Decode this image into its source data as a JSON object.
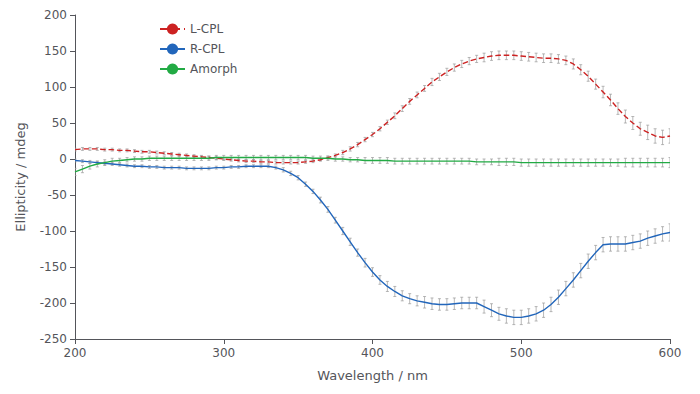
{
  "chart_data": {
    "type": "line",
    "xlabel": "Wavelength / nm",
    "ylabel": "Ellipticity / mdeg",
    "xlim": [
      200,
      600
    ],
    "ylim": [
      -250,
      200
    ],
    "xticks": [
      200,
      300,
      400,
      500,
      600
    ],
    "yticks": [
      -250,
      -200,
      -150,
      -100,
      -50,
      0,
      50,
      100,
      150,
      200
    ],
    "grid": false,
    "legend": "upper left",
    "x": [
      200,
      205,
      210,
      215,
      220,
      225,
      230,
      235,
      240,
      245,
      250,
      255,
      260,
      265,
      270,
      275,
      280,
      285,
      290,
      295,
      300,
      305,
      310,
      315,
      320,
      325,
      330,
      335,
      340,
      345,
      350,
      355,
      360,
      365,
      370,
      375,
      380,
      385,
      390,
      395,
      400,
      405,
      410,
      415,
      420,
      425,
      430,
      435,
      440,
      445,
      450,
      455,
      460,
      465,
      470,
      475,
      480,
      485,
      490,
      495,
      500,
      505,
      510,
      515,
      520,
      525,
      530,
      535,
      540,
      545,
      550,
      555,
      560,
      565,
      570,
      575,
      580,
      585,
      590,
      595,
      600
    ],
    "series": [
      {
        "name": "L-CPL",
        "color": "#cc2222",
        "line_style": "dashed",
        "values": [
          13,
          14,
          14,
          14,
          13,
          13,
          12,
          12,
          11,
          10,
          10,
          9,
          8,
          7,
          6,
          5,
          4,
          3,
          2,
          1,
          0,
          -1,
          -2,
          -3,
          -3,
          -4,
          -4,
          -5,
          -5,
          -5,
          -5,
          -4,
          -3,
          -1,
          2,
          5,
          9,
          14,
          20,
          27,
          34,
          42,
          51,
          60,
          70,
          80,
          89,
          98,
          107,
          114,
          121,
          127,
          132,
          136,
          139,
          141,
          143,
          144,
          144,
          144,
          143,
          142,
          141,
          140,
          140,
          139,
          137,
          132,
          124,
          115,
          104,
          93,
          82,
          70,
          59,
          50,
          42,
          37,
          32,
          30,
          32
        ],
        "yerr": [
          2,
          2,
          2,
          2,
          2,
          2,
          2,
          2,
          2,
          2,
          2,
          2,
          2,
          2,
          2,
          2,
          2,
          2,
          2,
          2,
          2,
          2,
          2,
          2,
          2,
          2,
          2,
          2,
          2,
          2,
          2,
          2,
          2,
          2,
          2,
          2,
          3,
          3,
          3,
          3,
          3,
          3,
          3,
          4,
          4,
          4,
          4,
          4,
          5,
          5,
          5,
          5,
          5,
          5,
          5,
          6,
          6,
          6,
          6,
          6,
          6,
          6,
          6,
          6,
          6,
          6,
          6,
          7,
          7,
          7,
          7,
          8,
          8,
          8,
          9,
          9,
          9,
          10,
          10,
          10,
          10
        ]
      },
      {
        "name": "R-CPL",
        "color": "#2266bb",
        "line_style": "solid",
        "values": [
          -2,
          -3,
          -4,
          -5,
          -6,
          -7,
          -8,
          -9,
          -10,
          -10,
          -11,
          -11,
          -12,
          -12,
          -12,
          -13,
          -13,
          -13,
          -13,
          -12,
          -12,
          -11,
          -11,
          -10,
          -10,
          -10,
          -10,
          -12,
          -15,
          -20,
          -26,
          -35,
          -45,
          -57,
          -70,
          -85,
          -100,
          -115,
          -130,
          -144,
          -157,
          -168,
          -177,
          -184,
          -190,
          -194,
          -197,
          -199,
          -201,
          -202,
          -202,
          -201,
          -200,
          -200,
          -200,
          -205,
          -210,
          -215,
          -218,
          -220,
          -220,
          -218,
          -215,
          -210,
          -202,
          -192,
          -180,
          -168,
          -155,
          -142,
          -130,
          -119,
          -118,
          -118,
          -118,
          -116,
          -114,
          -110,
          -107,
          -104,
          -102
        ],
        "yerr": [
          2,
          2,
          2,
          2,
          2,
          2,
          2,
          2,
          2,
          2,
          2,
          2,
          2,
          2,
          2,
          2,
          2,
          2,
          2,
          2,
          2,
          2,
          2,
          2,
          2,
          2,
          2,
          2,
          3,
          3,
          3,
          3,
          3,
          4,
          4,
          4,
          5,
          5,
          5,
          6,
          6,
          6,
          7,
          7,
          7,
          7,
          7,
          8,
          8,
          8,
          8,
          8,
          8,
          8,
          8,
          9,
          9,
          9,
          10,
          10,
          10,
          10,
          10,
          10,
          10,
          10,
          10,
          10,
          10,
          10,
          10,
          10,
          10,
          10,
          10,
          10,
          10,
          10,
          10,
          10,
          12
        ]
      },
      {
        "name": "Amorph",
        "color": "#22aa44",
        "line_style": "solid",
        "values": [
          -18,
          -14,
          -10,
          -7,
          -5,
          -3,
          -2,
          -1,
          0,
          0,
          1,
          1,
          1,
          1,
          1,
          1,
          1,
          1,
          1,
          2,
          2,
          2,
          2,
          2,
          2,
          2,
          2,
          2,
          2,
          2,
          2,
          2,
          1,
          1,
          1,
          0,
          0,
          -1,
          -1,
          -2,
          -2,
          -2,
          -2,
          -3,
          -3,
          -3,
          -3,
          -3,
          -3,
          -3,
          -3,
          -3,
          -3,
          -3,
          -4,
          -4,
          -4,
          -4,
          -4,
          -4,
          -5,
          -5,
          -5,
          -5,
          -5,
          -5,
          -5,
          -5,
          -5,
          -5,
          -5,
          -5,
          -5,
          -5,
          -5,
          -5,
          -5,
          -5,
          -5,
          -5,
          -5
        ],
        "yerr": [
          5,
          5,
          4,
          4,
          4,
          4,
          3,
          3,
          3,
          3,
          3,
          3,
          3,
          3,
          3,
          3,
          3,
          3,
          3,
          3,
          3,
          3,
          3,
          3,
          3,
          3,
          3,
          3,
          3,
          3,
          3,
          3,
          3,
          3,
          3,
          3,
          3,
          3,
          3,
          4,
          4,
          4,
          4,
          4,
          4,
          4,
          4,
          4,
          4,
          4,
          4,
          4,
          4,
          4,
          4,
          4,
          4,
          5,
          5,
          5,
          5,
          5,
          5,
          5,
          5,
          5,
          5,
          5,
          5,
          5,
          5,
          5,
          5,
          5,
          6,
          6,
          6,
          6,
          6,
          6,
          7
        ]
      }
    ]
  }
}
